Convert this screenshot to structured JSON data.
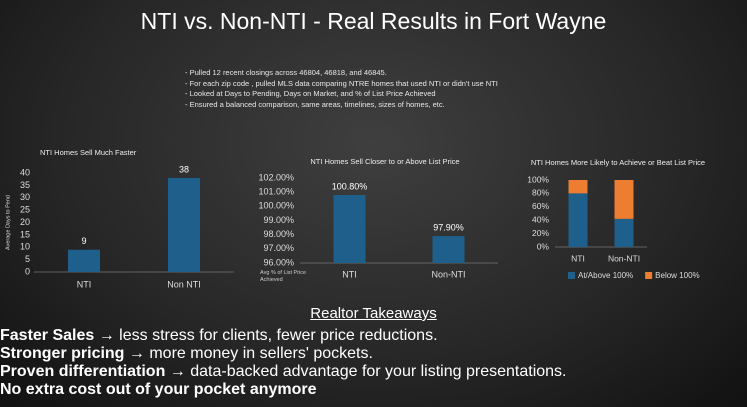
{
  "title": "NTI vs. Non-NTI - Real Results in Fort Wayne",
  "notes": [
    "- Pulled 12 recent closings across 46804, 46818, and 46845.",
    "- For each zip code , pulled MLS data comparing NTRE homes that used NTI or didn't use NTI",
    "- Looked at Days to Pending, Days on Market, and % of List Price Achieved",
    "- Ensured a balanced comparison, same areas, timelines, sizes of homes, etc."
  ],
  "chart_data": [
    {
      "type": "bar",
      "title": "NTI Homes Sell Much Faster",
      "y_label": "Average Days to Pend",
      "categories": [
        "NTI",
        "Non NTI"
      ],
      "values": [
        9,
        38
      ],
      "color": "#1f5f8b",
      "ylim": [
        0,
        40
      ],
      "yticks": [
        0,
        5,
        10,
        15,
        20,
        25,
        30,
        35,
        40
      ],
      "grid": false
    },
    {
      "type": "bar",
      "title": "NTI Homes Sell Closer to or Above List Price",
      "y_label": "Avg % of List Price Achieved",
      "categories": [
        "NTI",
        "Non-NTI"
      ],
      "values": [
        100.8,
        97.9
      ],
      "value_labels": [
        "100.80%",
        "97.90%"
      ],
      "color": "#1f5f8b",
      "ylim": [
        96,
        102
      ],
      "yticks": [
        {
          "value": 96,
          "label": "96.00%"
        },
        {
          "value": 97,
          "label": "97.00%"
        },
        {
          "value": 98,
          "label": "98.00%"
        },
        {
          "value": 99,
          "label": "99.00%"
        },
        {
          "value": 100,
          "label": "100.00%"
        },
        {
          "value": 101,
          "label": "101.00%"
        },
        {
          "value": 102,
          "label": "102.00%"
        }
      ],
      "grid": false
    },
    {
      "type": "stacked_bar",
      "title": "NTI Homes More Likely to Achieve or Beat List Price",
      "categories": [
        "NTI",
        "Non-NTI"
      ],
      "series": [
        {
          "name": "At/Above 100%",
          "color": "#1f5f8b",
          "values": [
            80,
            42
          ]
        },
        {
          "name": "Below 100%",
          "color": "#ed7d31",
          "values": [
            20,
            58
          ]
        }
      ],
      "ylim": [
        0,
        100
      ],
      "yticks": [
        {
          "value": 0,
          "label": "0%"
        },
        {
          "value": 20,
          "label": "20%"
        },
        {
          "value": 40,
          "label": "40%"
        },
        {
          "value": 60,
          "label": "60%"
        },
        {
          "value": 80,
          "label": "80%"
        },
        {
          "value": 100,
          "label": "100%"
        }
      ],
      "grid": false,
      "legend": "bottom"
    }
  ],
  "takeaways": {
    "title": "Realtor Takeaways",
    "items": [
      {
        "bold": "Faster Sales",
        "text": " → less stress for clients, fewer price reductions."
      },
      {
        "bold": "Stronger pricing",
        "text": " → more money in sellers' pockets."
      },
      {
        "bold": "Proven differentiation",
        "text": " → data-backed advantage for your listing presentations."
      },
      {
        "bold": "No extra cost out of your pocket anymore",
        "text": ""
      }
    ]
  }
}
